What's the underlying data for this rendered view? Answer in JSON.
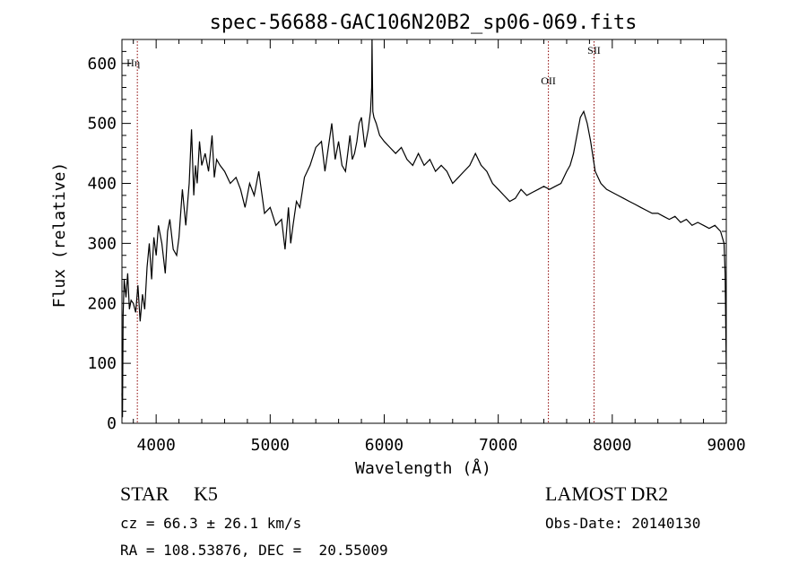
{
  "chart_data": {
    "type": "line",
    "title": "spec-56688-GAC106N20B2_sp06-069.fits",
    "xlabel": "Wavelength (Å)",
    "ylabel": "Flux (relative)",
    "xlim": [
      3700,
      9000
    ],
    "ylim": [
      0,
      640
    ],
    "xticks": [
      4000,
      5000,
      6000,
      7000,
      8000,
      9000
    ],
    "yticks": [
      0,
      100,
      200,
      300,
      400,
      500,
      600
    ],
    "grid": false,
    "series": [
      {
        "x": [
          3700,
          3705,
          3710,
          3720,
          3735,
          3750,
          3765,
          3780,
          3800,
          3820,
          3840,
          3860,
          3880,
          3900,
          3920,
          3940,
          3960,
          3980,
          4000,
          4020,
          4050,
          4080,
          4100,
          4120,
          4150,
          4180,
          4200,
          4230,
          4260,
          4290,
          4310,
          4330,
          4345,
          4360,
          4380,
          4400,
          4430,
          4460,
          4490,
          4510,
          4530,
          4560,
          4600,
          4650,
          4700,
          4740,
          4780,
          4820,
          4860,
          4900,
          4950,
          5000,
          5050,
          5100,
          5130,
          5160,
          5180,
          5200,
          5230,
          5260,
          5300,
          5350,
          5400,
          5450,
          5480,
          5510,
          5540,
          5570,
          5600,
          5630,
          5660,
          5700,
          5720,
          5740,
          5760,
          5780,
          5800,
          5830,
          5860,
          5880,
          5890,
          5893,
          5896,
          5900,
          5910,
          5930,
          5960,
          6000,
          6050,
          6100,
          6150,
          6200,
          6250,
          6300,
          6350,
          6400,
          6450,
          6500,
          6550,
          6600,
          6650,
          6700,
          6750,
          6800,
          6850,
          6900,
          6950,
          7000,
          7050,
          7100,
          7150,
          7200,
          7250,
          7300,
          7350,
          7400,
          7450,
          7500,
          7550,
          7600,
          7630,
          7660,
          7690,
          7720,
          7750,
          7780,
          7810,
          7850,
          7900,
          7950,
          8000,
          8050,
          8100,
          8150,
          8200,
          8250,
          8300,
          8350,
          8400,
          8450,
          8500,
          8550,
          8600,
          8650,
          8700,
          8750,
          8800,
          8850,
          8900,
          8950,
          8980,
          8990,
          9000
        ],
        "y": [
          50,
          10,
          180,
          240,
          210,
          250,
          190,
          205,
          200,
          185,
          230,
          170,
          215,
          190,
          260,
          300,
          240,
          310,
          280,
          330,
          300,
          250,
          320,
          340,
          290,
          280,
          310,
          390,
          330,
          400,
          490,
          380,
          430,
          400,
          470,
          430,
          450,
          420,
          480,
          410,
          440,
          430,
          420,
          400,
          410,
          390,
          360,
          400,
          380,
          420,
          350,
          360,
          330,
          340,
          290,
          360,
          300,
          330,
          370,
          360,
          410,
          430,
          460,
          470,
          420,
          460,
          500,
          440,
          470,
          430,
          420,
          480,
          440,
          450,
          470,
          500,
          510,
          460,
          490,
          520,
          560,
          640,
          580,
          520,
          510,
          500,
          480,
          470,
          460,
          450,
          460,
          440,
          430,
          450,
          430,
          440,
          420,
          430,
          420,
          400,
          410,
          420,
          430,
          450,
          430,
          420,
          400,
          390,
          380,
          370,
          375,
          390,
          380,
          385,
          390,
          395,
          390,
          395,
          400,
          420,
          430,
          450,
          480,
          510,
          520,
          500,
          470,
          420,
          400,
          390,
          385,
          380,
          375,
          370,
          365,
          360,
          355,
          350,
          350,
          345,
          340,
          345,
          335,
          340,
          330,
          335,
          330,
          325,
          330,
          320,
          300,
          250,
          90
        ]
      }
    ],
    "lines": [
      {
        "x": 3835,
        "label": "Hη"
      },
      {
        "x": 7440,
        "label": "OII"
      },
      {
        "x": 7840,
        "label": "SII"
      }
    ]
  },
  "footer": {
    "classification": "STAR     K5",
    "cz": "cz = 66.3 ± 26.1 km/s",
    "coords": "RA = 108.53876, DEC =  20.55009",
    "survey": "LAMOST DR2",
    "obs_date": "Obs-Date: 20140130"
  },
  "colors": {
    "line": "#000000",
    "marker": "#8b0000"
  }
}
